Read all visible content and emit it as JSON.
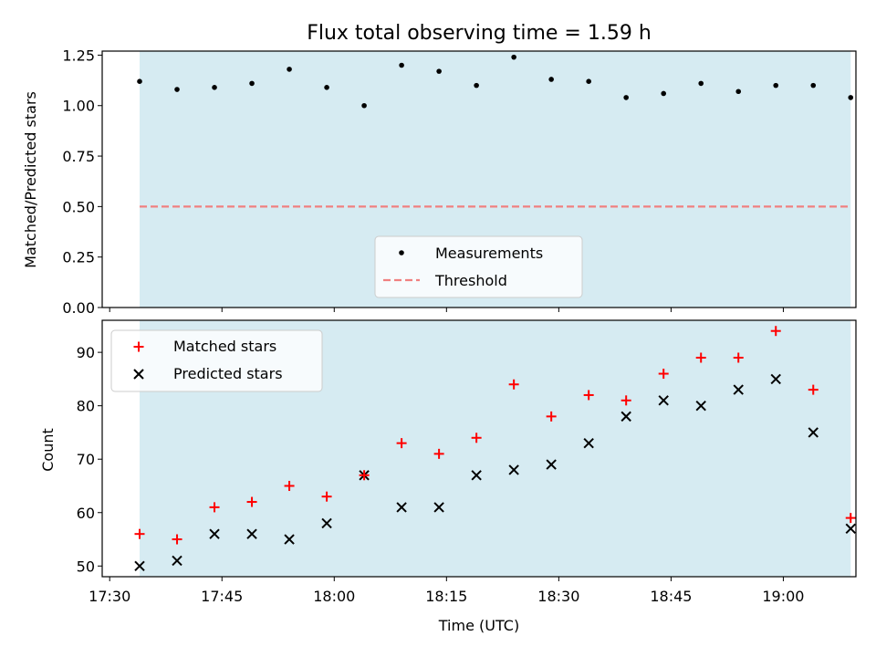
{
  "title": "Flux total observing time = 1.59 h",
  "colors": {
    "shade": "#add8e6",
    "threshold": "#f08080",
    "matched": "#ff0000",
    "predicted": "#000000",
    "measurement": "#000000"
  },
  "chart_data": [
    {
      "type": "scatter",
      "ylabel": "Matched/Predicted stars",
      "ylim": [
        0,
        1.27
      ],
      "y_ticks": [
        "0.00",
        "0.25",
        "0.50",
        "0.75",
        "1.00",
        "1.25"
      ],
      "x_range": [
        "17:29",
        "19:09"
      ],
      "shaded_span": [
        "17:34",
        "19:09"
      ],
      "legend_position": "lower center",
      "threshold": {
        "name": "Threshold",
        "value": 0.5,
        "style": "dashed"
      },
      "series": [
        {
          "name": "Measurements",
          "marker": "dot",
          "x": [
            "17:34",
            "17:39",
            "17:44",
            "17:49",
            "17:54",
            "17:59",
            "18:04",
            "18:09",
            "18:14",
            "18:19",
            "18:24",
            "18:29",
            "18:34",
            "18:39",
            "18:44",
            "18:49",
            "18:54",
            "18:59",
            "19:04",
            "19:09"
          ],
          "values": [
            1.12,
            1.08,
            1.09,
            1.11,
            1.18,
            1.09,
            1.0,
            1.2,
            1.17,
            1.1,
            1.24,
            1.13,
            1.12,
            1.04,
            1.06,
            1.11,
            1.07,
            1.1,
            1.1,
            1.04
          ]
        }
      ]
    },
    {
      "type": "scatter",
      "xlabel": "Time (UTC)",
      "ylabel": "Count",
      "ylim": [
        48,
        96
      ],
      "y_ticks": [
        "50",
        "60",
        "70",
        "80",
        "90"
      ],
      "x_ticks": [
        "17:30",
        "17:45",
        "18:00",
        "18:15",
        "18:30",
        "18:45",
        "19:00"
      ],
      "x_range": [
        "17:29",
        "19:09"
      ],
      "shaded_span": [
        "17:34",
        "19:09"
      ],
      "legend_position": "upper left",
      "series": [
        {
          "name": "Matched stars",
          "marker": "plus",
          "x": [
            "17:34",
            "17:39",
            "17:44",
            "17:49",
            "17:54",
            "17:59",
            "18:04",
            "18:09",
            "18:14",
            "18:19",
            "18:24",
            "18:29",
            "18:34",
            "18:39",
            "18:44",
            "18:49",
            "18:54",
            "18:59",
            "19:04",
            "19:09"
          ],
          "values": [
            56,
            55,
            61,
            62,
            65,
            63,
            67,
            73,
            71,
            74,
            84,
            78,
            82,
            81,
            86,
            89,
            89,
            94,
            83,
            59
          ]
        },
        {
          "name": "Predicted stars",
          "marker": "x",
          "x": [
            "17:34",
            "17:39",
            "17:44",
            "17:49",
            "17:54",
            "17:59",
            "18:04",
            "18:09",
            "18:14",
            "18:19",
            "18:24",
            "18:29",
            "18:34",
            "18:39",
            "18:44",
            "18:49",
            "18:54",
            "18:59",
            "19:04",
            "19:09"
          ],
          "values": [
            50,
            51,
            56,
            56,
            55,
            58,
            67,
            61,
            61,
            67,
            68,
            69,
            73,
            78,
            81,
            80,
            83,
            85,
            75,
            57
          ]
        }
      ]
    }
  ]
}
